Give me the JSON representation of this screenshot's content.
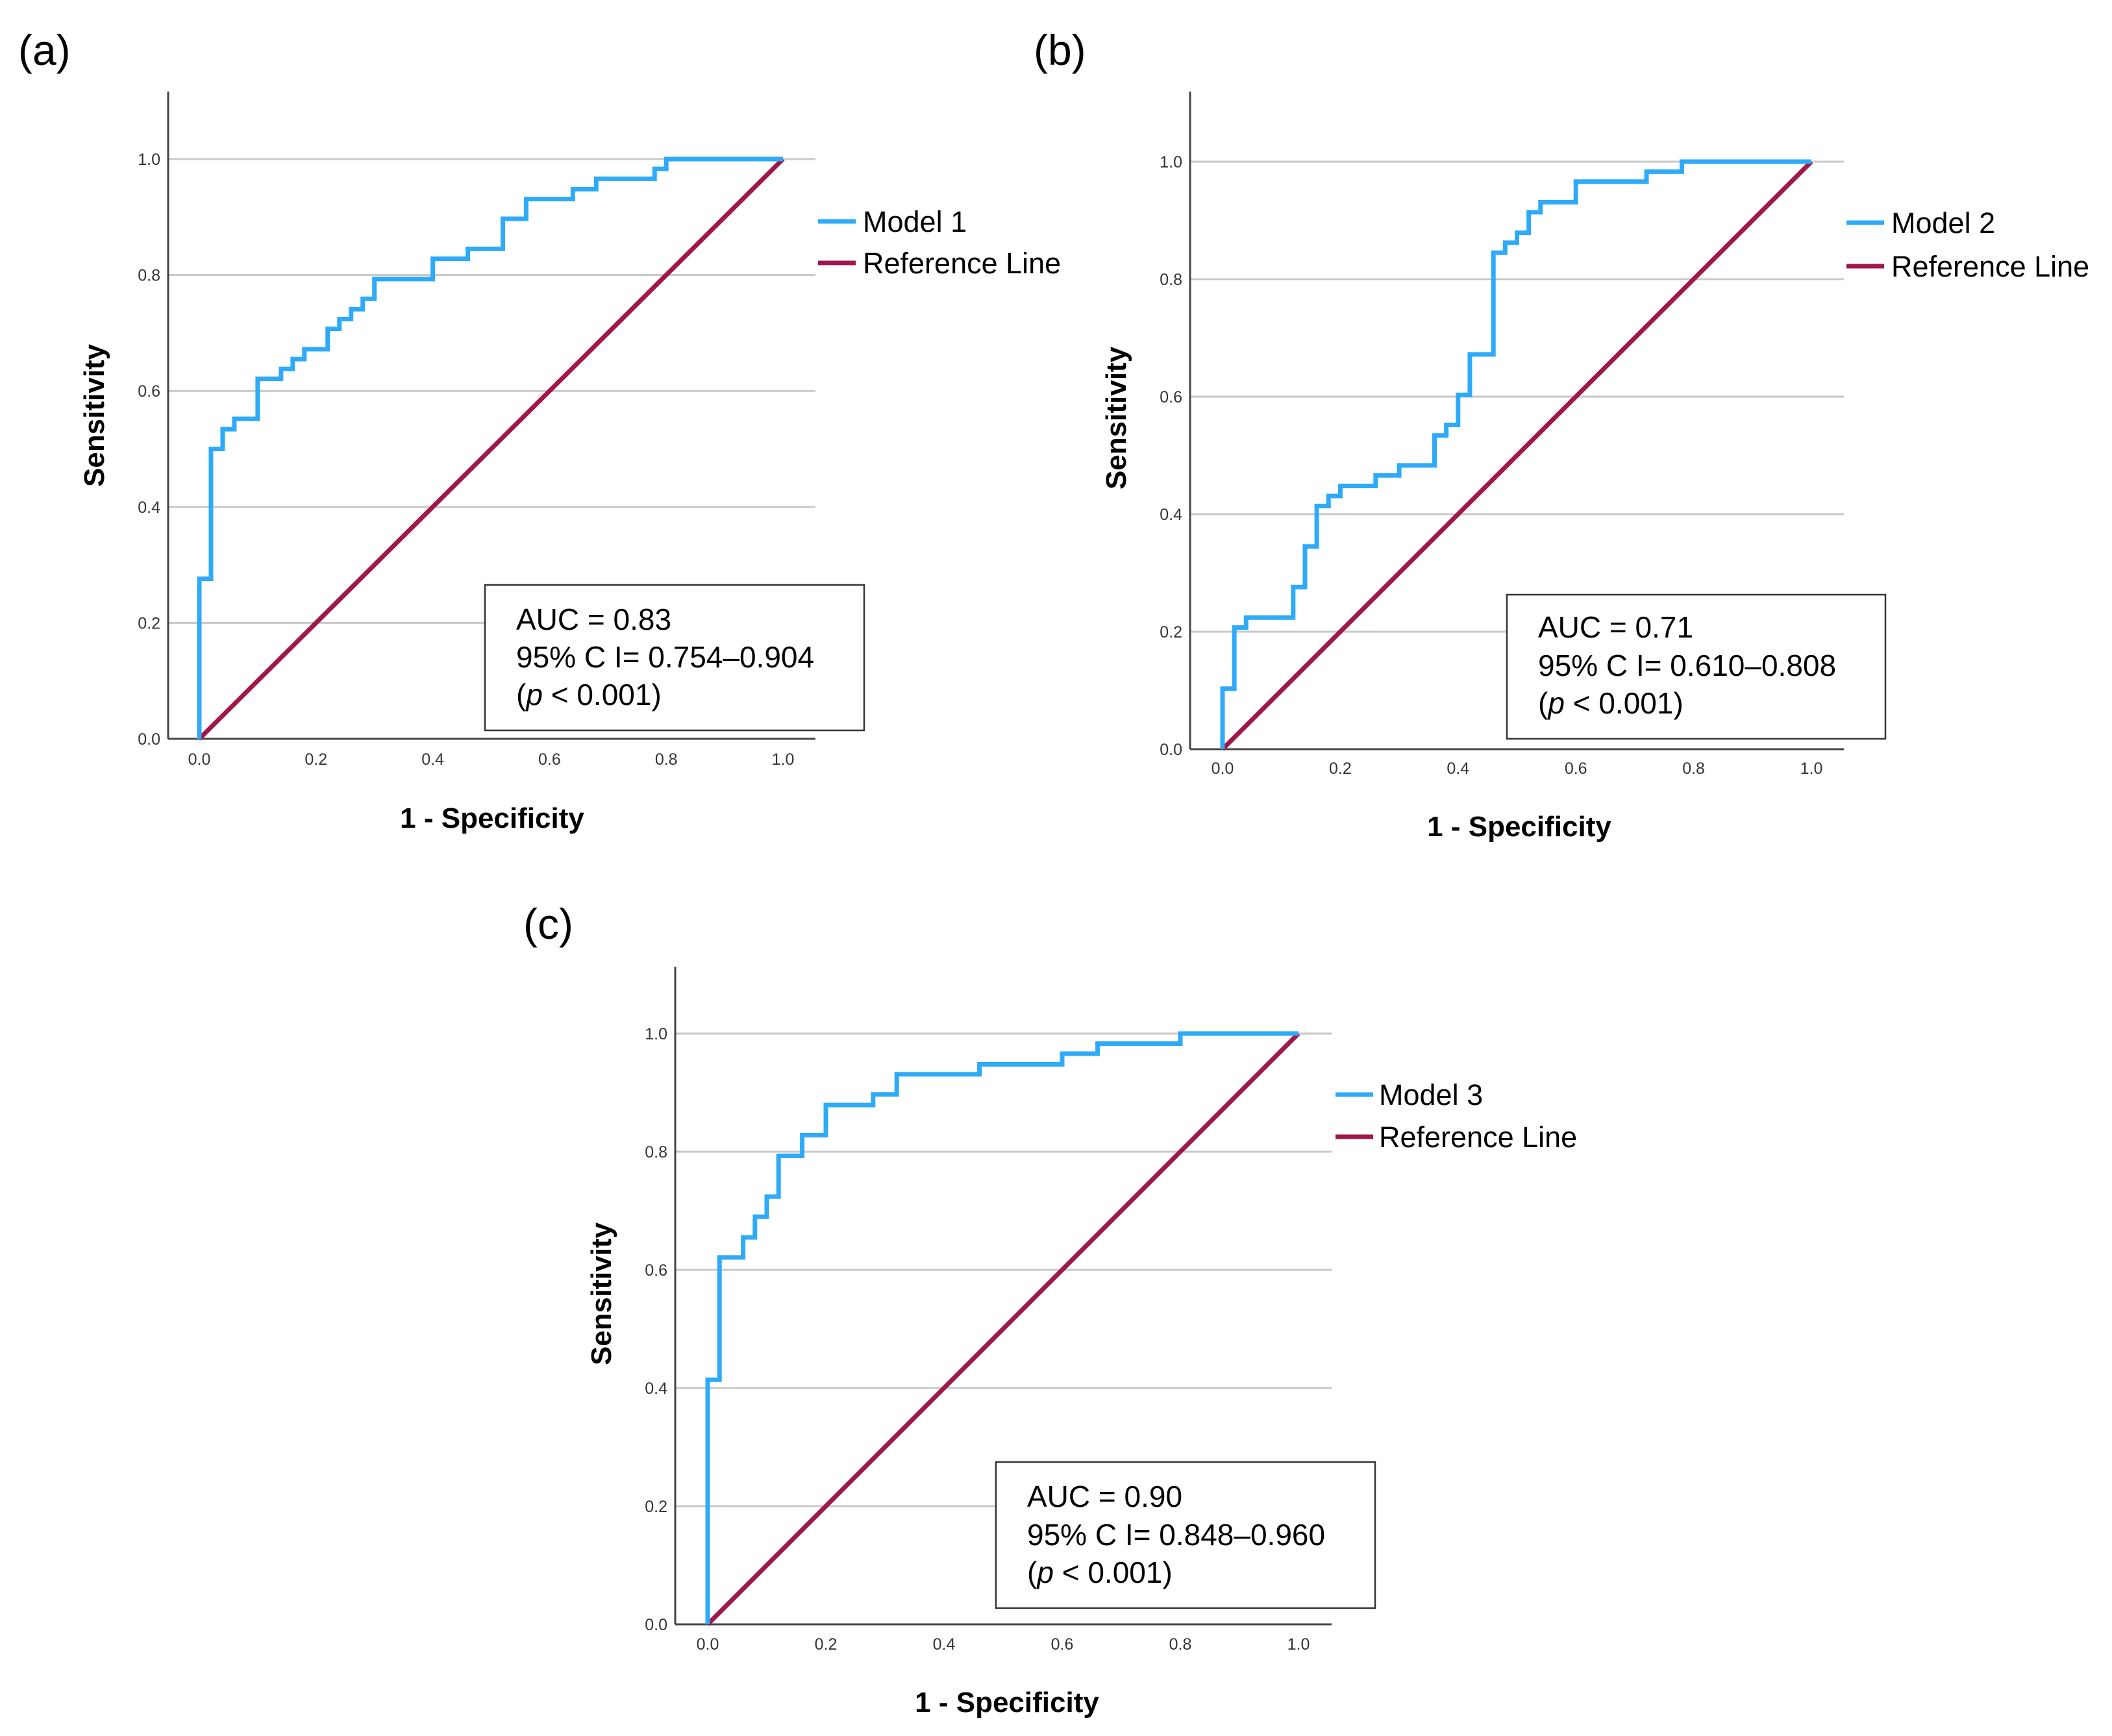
{
  "colors": {
    "roc": "#2eaaf8",
    "reference": "#a0174c",
    "grid": "#c8c8c8",
    "axis": "#444444"
  },
  "chart_data": [
    {
      "type": "line",
      "panel_label": "(a)",
      "xlabel": "1 - Specificity",
      "ylabel": "Sensitivity",
      "xlim": [
        0,
        1
      ],
      "ylim": [
        0,
        1
      ],
      "xticks": [
        "0.0",
        "0.2",
        "0.4",
        "0.6",
        "0.8",
        "1.0"
      ],
      "yticks": [
        "0.0",
        "0.2",
        "0.4",
        "0.6",
        "0.8",
        "1.0"
      ],
      "grid": "horizontal",
      "legend": [
        "Model 1",
        "Reference Line"
      ],
      "legend_position": "right",
      "annotation": [
        "AUC = 0.83",
        "95% C I= 0.754–0.904",
        "(",
        "p",
        " < 0.001)"
      ],
      "series": [
        {
          "name": "Model 1",
          "points": [
            [
              0,
              0
            ],
            [
              0,
              0.276
            ],
            [
              0.02,
              0.276
            ],
            [
              0.02,
              0.5
            ],
            [
              0.04,
              0.5
            ],
            [
              0.04,
              0.534
            ],
            [
              0.06,
              0.534
            ],
            [
              0.06,
              0.552
            ],
            [
              0.1,
              0.552
            ],
            [
              0.1,
              0.621
            ],
            [
              0.14,
              0.621
            ],
            [
              0.14,
              0.638
            ],
            [
              0.16,
              0.638
            ],
            [
              0.16,
              0.655
            ],
            [
              0.18,
              0.655
            ],
            [
              0.18,
              0.672
            ],
            [
              0.22,
              0.672
            ],
            [
              0.22,
              0.707
            ],
            [
              0.24,
              0.707
            ],
            [
              0.24,
              0.724
            ],
            [
              0.26,
              0.724
            ],
            [
              0.26,
              0.741
            ],
            [
              0.28,
              0.741
            ],
            [
              0.28,
              0.759
            ],
            [
              0.3,
              0.759
            ],
            [
              0.3,
              0.793
            ],
            [
              0.4,
              0.793
            ],
            [
              0.4,
              0.828
            ],
            [
              0.46,
              0.828
            ],
            [
              0.46,
              0.845
            ],
            [
              0.52,
              0.845
            ],
            [
              0.52,
              0.897
            ],
            [
              0.56,
              0.897
            ],
            [
              0.56,
              0.931
            ],
            [
              0.64,
              0.931
            ],
            [
              0.64,
              0.948
            ],
            [
              0.68,
              0.948
            ],
            [
              0.68,
              0.966
            ],
            [
              0.78,
              0.966
            ],
            [
              0.78,
              0.983
            ],
            [
              0.8,
              0.983
            ],
            [
              0.8,
              1
            ],
            [
              1,
              1
            ]
          ]
        },
        {
          "name": "Reference Line",
          "points": [
            [
              0,
              0
            ],
            [
              1,
              1
            ]
          ]
        }
      ]
    },
    {
      "type": "line",
      "panel_label": "(b)",
      "xlabel": "1 - Specificity",
      "ylabel": "Sensitivity",
      "xlim": [
        0,
        1
      ],
      "ylim": [
        0,
        1
      ],
      "xticks": [
        "0.0",
        "0.2",
        "0.4",
        "0.6",
        "0.8",
        "1.0"
      ],
      "yticks": [
        "0.0",
        "0.2",
        "0.4",
        "0.6",
        "0.8",
        "1.0"
      ],
      "grid": "horizontal",
      "legend": [
        "Model 2",
        "Reference Line"
      ],
      "legend_position": "right",
      "annotation": [
        "AUC = 0.71",
        "95% C I= 0.610–0.808",
        "(",
        "p",
        " < 0.001)"
      ],
      "series": [
        {
          "name": "Model 2",
          "points": [
            [
              0,
              0
            ],
            [
              0,
              0.103
            ],
            [
              0.02,
              0.103
            ],
            [
              0.02,
              0.207
            ],
            [
              0.04,
              0.207
            ],
            [
              0.04,
              0.224
            ],
            [
              0.12,
              0.224
            ],
            [
              0.12,
              0.276
            ],
            [
              0.14,
              0.276
            ],
            [
              0.14,
              0.345
            ],
            [
              0.16,
              0.345
            ],
            [
              0.16,
              0.414
            ],
            [
              0.18,
              0.414
            ],
            [
              0.18,
              0.431
            ],
            [
              0.2,
              0.431
            ],
            [
              0.2,
              0.448
            ],
            [
              0.26,
              0.448
            ],
            [
              0.26,
              0.466
            ],
            [
              0.3,
              0.466
            ],
            [
              0.3,
              0.483
            ],
            [
              0.36,
              0.483
            ],
            [
              0.36,
              0.534
            ],
            [
              0.38,
              0.534
            ],
            [
              0.38,
              0.552
            ],
            [
              0.4,
              0.552
            ],
            [
              0.4,
              0.603
            ],
            [
              0.42,
              0.603
            ],
            [
              0.42,
              0.672
            ],
            [
              0.46,
              0.672
            ],
            [
              0.46,
              0.845
            ],
            [
              0.48,
              0.845
            ],
            [
              0.48,
              0.862
            ],
            [
              0.5,
              0.862
            ],
            [
              0.5,
              0.879
            ],
            [
              0.52,
              0.879
            ],
            [
              0.52,
              0.914
            ],
            [
              0.54,
              0.914
            ],
            [
              0.54,
              0.931
            ],
            [
              0.6,
              0.931
            ],
            [
              0.6,
              0.966
            ],
            [
              0.72,
              0.966
            ],
            [
              0.72,
              0.983
            ],
            [
              0.78,
              0.983
            ],
            [
              0.78,
              1
            ],
            [
              1,
              1
            ]
          ]
        },
        {
          "name": "Reference Line",
          "points": [
            [
              0,
              0
            ],
            [
              1,
              1
            ]
          ]
        }
      ]
    },
    {
      "type": "line",
      "panel_label": "(c)",
      "xlabel": "1 - Specificity",
      "ylabel": "Sensitivity",
      "xlim": [
        0,
        1
      ],
      "ylim": [
        0,
        1
      ],
      "xticks": [
        "0.0",
        "0.2",
        "0.4",
        "0.6",
        "0.8",
        "1.0"
      ],
      "yticks": [
        "0.0",
        "0.2",
        "0.4",
        "0.6",
        "0.8",
        "1.0"
      ],
      "grid": "horizontal",
      "legend": [
        "Model 3",
        "Reference Line"
      ],
      "legend_position": "right",
      "annotation": [
        "AUC = 0.90",
        "95% C I= 0.848–0.960",
        "(",
        "p",
        " < 0.001)"
      ],
      "series": [
        {
          "name": "Model 3",
          "points": [
            [
              0,
              0
            ],
            [
              0,
              0.414
            ],
            [
              0.02,
              0.414
            ],
            [
              0.02,
              0.621
            ],
            [
              0.06,
              0.621
            ],
            [
              0.06,
              0.655
            ],
            [
              0.08,
              0.655
            ],
            [
              0.08,
              0.69
            ],
            [
              0.1,
              0.69
            ],
            [
              0.1,
              0.724
            ],
            [
              0.12,
              0.724
            ],
            [
              0.12,
              0.793
            ],
            [
              0.16,
              0.793
            ],
            [
              0.16,
              0.828
            ],
            [
              0.2,
              0.828
            ],
            [
              0.2,
              0.879
            ],
            [
              0.28,
              0.879
            ],
            [
              0.28,
              0.897
            ],
            [
              0.32,
              0.897
            ],
            [
              0.32,
              0.931
            ],
            [
              0.46,
              0.931
            ],
            [
              0.46,
              0.948
            ],
            [
              0.6,
              0.948
            ],
            [
              0.6,
              0.966
            ],
            [
              0.66,
              0.966
            ],
            [
              0.66,
              0.983
            ],
            [
              0.8,
              0.983
            ],
            [
              0.8,
              1
            ],
            [
              1,
              1
            ]
          ]
        },
        {
          "name": "Reference Line",
          "points": [
            [
              0,
              0
            ],
            [
              1,
              1
            ]
          ]
        }
      ]
    }
  ]
}
